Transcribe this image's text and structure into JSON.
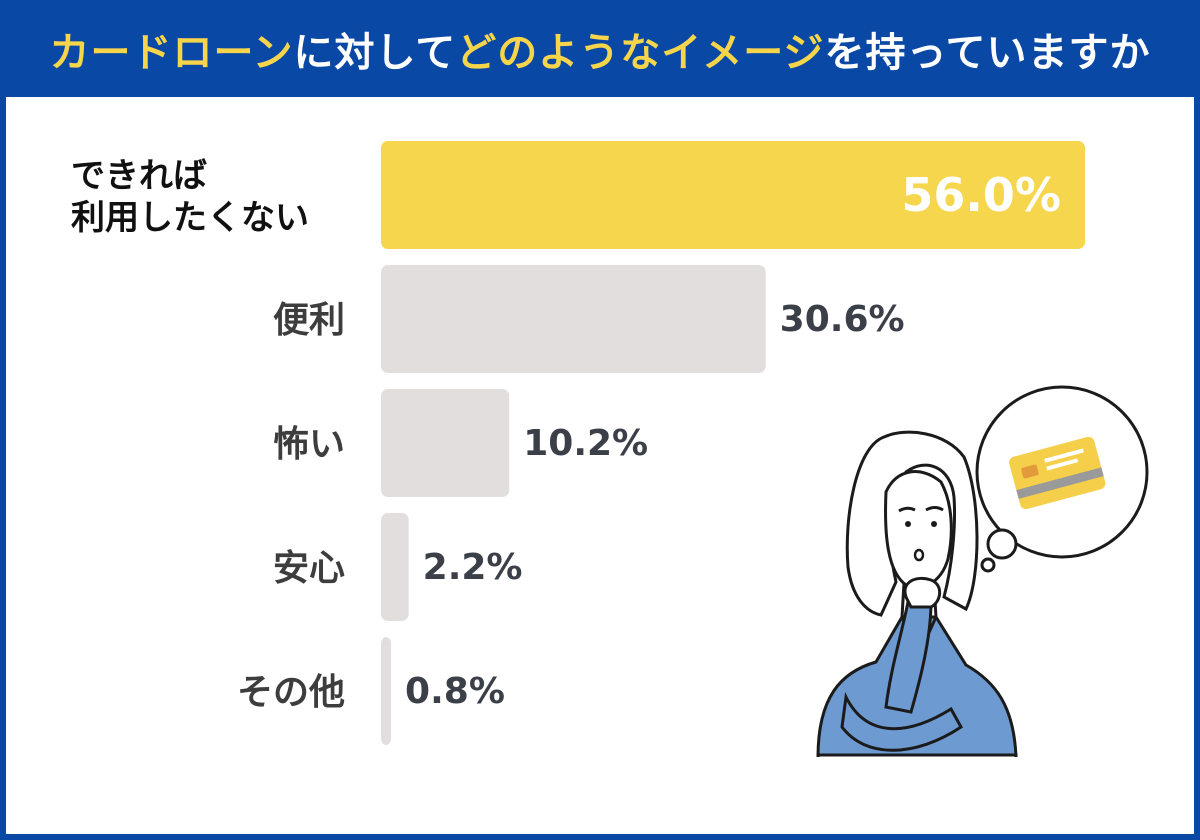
{
  "header": {
    "title_parts": [
      {
        "text": "カードローン",
        "highlight": true
      },
      {
        "text": "に対して",
        "highlight": false
      },
      {
        "text": "どのようなイメージ",
        "highlight": true
      },
      {
        "text": "を持っていますか",
        "highlight": false
      }
    ]
  },
  "colors": {
    "frame": "#0a48a6",
    "highlight_text": "#f7d54a",
    "top_bar": "#f6d64c",
    "other_bars": "#e2dedd"
  },
  "illustration": {
    "subject": "woman-thinking",
    "thought_bubble_icon": "credit-card-icon"
  },
  "chart_data": {
    "type": "bar",
    "orientation": "horizontal",
    "categories": [
      [
        "できれば",
        "利用したくない"
      ],
      [
        "便利"
      ],
      [
        "怖い"
      ],
      [
        "安心"
      ],
      [
        "その他"
      ]
    ],
    "values": [
      56.0,
      30.6,
      10.2,
      2.2,
      0.8
    ],
    "value_labels": [
      "56.0%",
      "30.6%",
      "10.2%",
      "2.2%",
      "0.8%"
    ],
    "unit": "%",
    "xlim": [
      0,
      56
    ]
  }
}
